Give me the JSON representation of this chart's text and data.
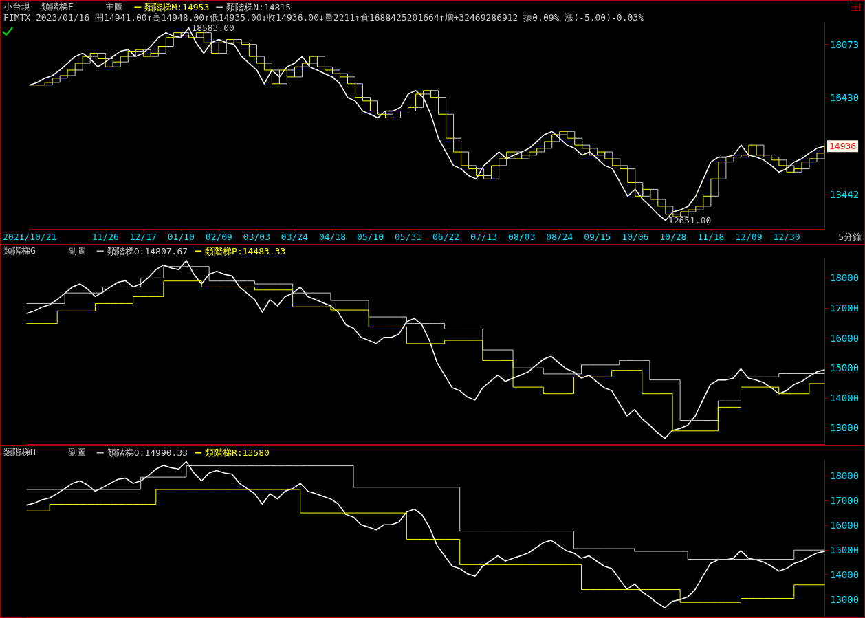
{
  "chart_data": [
    {
      "type": "line",
      "title": "小台現  類階梯F      主圖",
      "subtitle": "FIMTX 2023/01/16 開14941.00↑高14948.00↑低14935.00↓收14936.00↓量2211↑倉1688425201664↑增+32469286912 振0.09% 漲(-5.00)-0.03%",
      "legend": "top left",
      "categories": [
        "2021/10/21",
        null,
        null,
        null,
        null,
        null,
        null,
        null,
        null,
        null,
        "11/26",
        null,
        null,
        null,
        null,
        "12/17",
        null,
        null,
        null,
        null,
        "01/10",
        null,
        null,
        null,
        null,
        "02/09",
        null,
        null,
        null,
        null,
        "03/03",
        null,
        null,
        null,
        null,
        "03/24",
        null,
        null,
        null,
        null,
        "04/18",
        null,
        null,
        null,
        null,
        "05/10",
        null,
        null,
        null,
        null,
        "05/31",
        null,
        null,
        null,
        null,
        "06/22",
        null,
        null,
        null,
        null,
        "07/13",
        null,
        null,
        null,
        null,
        "08/03",
        null,
        null,
        null,
        null,
        "08/24",
        null,
        null,
        null,
        null,
        "09/15",
        null,
        null,
        null,
        null,
        "10/06",
        null,
        null,
        null,
        null,
        "10/28",
        null,
        null,
        null,
        null,
        "11/18",
        null,
        null,
        null,
        null,
        "12/09",
        null,
        null,
        null,
        null,
        "12/30",
        null,
        null,
        null,
        null,
        null
      ],
      "ylim": [
        12390,
        18740
      ],
      "yticks": [
        13442,
        16430,
        18073
      ],
      "annotations": [
        "18583.00",
        "12651.00",
        "14936",
        "5分鐘"
      ],
      "series": [
        {
          "color": "#ffffff",
          "values": [
            16820,
            16900,
            17030,
            17110,
            17280,
            17490,
            17700,
            17800,
            17630,
            17380,
            17530,
            17700,
            17860,
            17910,
            17700,
            17800,
            18010,
            18280,
            18430,
            18330,
            18280,
            18583,
            18120,
            17800,
            18120,
            18220,
            18120,
            18070,
            17700,
            17490,
            17280,
            16860,
            17280,
            17070,
            17380,
            17490,
            17700,
            17380,
            17280,
            17170,
            17070,
            16860,
            16440,
            16330,
            16020,
            15920,
            15810,
            16020,
            16020,
            16130,
            16540,
            16650,
            16440,
            15920,
            15180,
            14760,
            14340,
            14240,
            14030,
            13930,
            14340,
            14550,
            14760,
            14550,
            14660,
            14760,
            14870,
            15080,
            15290,
            15390,
            15180,
            14970,
            14870,
            14660,
            14760,
            14550,
            14340,
            14240,
            13820,
            13400,
            13610,
            13300,
            13090,
            12840,
            12651,
            12920,
            12980,
            13090,
            13400,
            13930,
            14450,
            14600,
            14600,
            14660,
            14970,
            14660,
            14600,
            14510,
            14340,
            14140,
            14240,
            14450,
            14550,
            14720,
            14870,
            14936
          ]
        },
        {
          "type": "step",
          "name": "類階梯M:14953",
          "color": "#ffff00",
          "values": [
            16820,
            16820,
            16900,
            17030,
            17110,
            17280,
            17490,
            17700,
            17800,
            17630,
            17380,
            17530,
            17700,
            17860,
            17910,
            17700,
            17800,
            18010,
            18280,
            18430,
            18330,
            18280,
            18430,
            18120,
            17800,
            18120,
            18220,
            18120,
            18070,
            17700,
            17490,
            17280,
            16860,
            17280,
            17070,
            17380,
            17490,
            17700,
            17380,
            17280,
            17170,
            17070,
            16860,
            16440,
            16330,
            16020,
            15920,
            15810,
            16020,
            16020,
            16130,
            16540,
            16650,
            16440,
            15920,
            15180,
            14760,
            14340,
            14240,
            14030,
            13930,
            14340,
            14550,
            14760,
            14550,
            14660,
            14760,
            14870,
            15080,
            15290,
            15390,
            15180,
            14970,
            14870,
            14660,
            14760,
            14550,
            14340,
            14240,
            13820,
            13400,
            13610,
            13300,
            13090,
            12840,
            12770,
            12920,
            12980,
            13090,
            13400,
            13930,
            14450,
            14600,
            14600,
            14660,
            14970,
            14660,
            14600,
            14510,
            14340,
            14140,
            14240,
            14450,
            14550,
            14720,
            14950
          ]
        },
        {
          "type": "step",
          "name": "類階梯N:14815",
          "color": "#d0d0d0",
          "values": [
            16820,
            16820,
            16820,
            16900,
            17030,
            17110,
            17280,
            17490,
            17700,
            17800,
            17630,
            17380,
            17530,
            17700,
            17860,
            17910,
            17700,
            17800,
            18010,
            18280,
            18430,
            18330,
            18280,
            18430,
            18120,
            17800,
            18120,
            18220,
            18120,
            18070,
            17700,
            17490,
            17280,
            16860,
            17280,
            17070,
            17380,
            17490,
            17700,
            17380,
            17280,
            17170,
            17070,
            16860,
            16440,
            16330,
            16020,
            15920,
            15810,
            16020,
            16020,
            16130,
            16540,
            16650,
            16440,
            15920,
            15180,
            14760,
            14340,
            14240,
            14030,
            13930,
            14340,
            14550,
            14760,
            14550,
            14660,
            14760,
            14870,
            15080,
            15290,
            15390,
            15180,
            14970,
            14870,
            14660,
            14760,
            14550,
            14340,
            14240,
            13820,
            13400,
            13610,
            13300,
            13090,
            12840,
            12770,
            12920,
            12980,
            13090,
            13400,
            13930,
            14450,
            14600,
            14600,
            14660,
            14970,
            14660,
            14600,
            14510,
            14340,
            14140,
            14240,
            14450,
            14550,
            14820
          ]
        }
      ]
    },
    {
      "type": "line",
      "title": "類階梯G      副圖",
      "legend": "top left",
      "tick_labels": "y",
      "categories": [
        null,
        null,
        null,
        null,
        null,
        null,
        null,
        null,
        null,
        null,
        null,
        null,
        null,
        null,
        null,
        null,
        null,
        null,
        null,
        null,
        null,
        null,
        null,
        null,
        null,
        null,
        null,
        null,
        null,
        null,
        null,
        null,
        null,
        null,
        null,
        null,
        null,
        null,
        null,
        null,
        null,
        null,
        null,
        null,
        null,
        null,
        null,
        null,
        null,
        null,
        null,
        null,
        null,
        null,
        null,
        null,
        null,
        null,
        null,
        null,
        null,
        null,
        null,
        null,
        null,
        null,
        null,
        null,
        null,
        null,
        null,
        null,
        null,
        null,
        null,
        null,
        null,
        null,
        null,
        null,
        null,
        null,
        null,
        null,
        null,
        null,
        null,
        null,
        null,
        null,
        null,
        null,
        null,
        null,
        null,
        null,
        null,
        null,
        null,
        null,
        null,
        null,
        null,
        null,
        null,
        null
      ],
      "ylim": [
        12460,
        18650
      ],
      "yticks": [
        13000,
        14000,
        15000,
        16000,
        17000,
        18000
      ],
      "series": [
        {
          "color": "#ffffff",
          "values": [
            16820,
            16900,
            17030,
            17110,
            17280,
            17490,
            17700,
            17800,
            17630,
            17380,
            17530,
            17700,
            17860,
            17910,
            17700,
            17800,
            18010,
            18280,
            18430,
            18330,
            18280,
            18583,
            18120,
            17800,
            18120,
            18220,
            18120,
            18070,
            17700,
            17490,
            17280,
            16860,
            17280,
            17070,
            17380,
            17490,
            17700,
            17380,
            17280,
            17170,
            17070,
            16860,
            16440,
            16330,
            16020,
            15920,
            15810,
            16020,
            16020,
            16130,
            16540,
            16650,
            16440,
            15920,
            15180,
            14760,
            14340,
            14240,
            14030,
            13930,
            14340,
            14550,
            14760,
            14550,
            14660,
            14760,
            14870,
            15080,
            15290,
            15390,
            15180,
            14970,
            14870,
            14660,
            14760,
            14550,
            14340,
            14240,
            13820,
            13400,
            13610,
            13300,
            13090,
            12840,
            12651,
            12920,
            12980,
            13090,
            13400,
            13930,
            14450,
            14600,
            14600,
            14660,
            14970,
            14660,
            14600,
            14510,
            14340,
            14140,
            14240,
            14450,
            14550,
            14720,
            14870,
            14936
          ]
        },
        {
          "type": "step",
          "name": "類階梯O:14807.67",
          "color": "#d0d0d0",
          "values": [
            17150,
            17150,
            17150,
            17150,
            17150,
            17500,
            17500,
            17500,
            17500,
            17500,
            17700,
            17700,
            17700,
            17700,
            17700,
            18000,
            18000,
            18000,
            18380,
            18380,
            18380,
            18380,
            18380,
            18380,
            17900,
            17900,
            17900,
            17900,
            17900,
            17900,
            17800,
            17800,
            17800,
            17800,
            17800,
            17500,
            17500,
            17500,
            17500,
            17500,
            17250,
            17250,
            17250,
            17250,
            17250,
            16700,
            16700,
            16700,
            16700,
            16700,
            16480,
            16480,
            16480,
            16480,
            16480,
            16300,
            16300,
            16300,
            16300,
            16300,
            15600,
            15600,
            15600,
            15600,
            15000,
            15000,
            15000,
            15000,
            14800,
            14800,
            14800,
            14800,
            14800,
            15100,
            15100,
            15100,
            15100,
            15100,
            15250,
            15250,
            15250,
            15250,
            14600,
            14600,
            14600,
            14600,
            13250,
            13250,
            13250,
            13250,
            13250,
            13900,
            13900,
            13900,
            14700,
            14700,
            14700,
            14700,
            14700,
            14810,
            14810,
            14810,
            14810,
            14810,
            14810,
            14810
          ]
        },
        {
          "type": "step",
          "name": "類階梯P:14483.33",
          "color": "#ffff00",
          "values": [
            16480,
            16480,
            16480,
            16480,
            16900,
            16900,
            16900,
            16900,
            16900,
            17150,
            17150,
            17150,
            17150,
            17150,
            17380,
            17380,
            17380,
            17380,
            17900,
            17900,
            17900,
            17900,
            17900,
            17700,
            17700,
            17700,
            17700,
            17700,
            17700,
            17700,
            17600,
            17600,
            17600,
            17600,
            17600,
            17040,
            17040,
            17040,
            17040,
            17040,
            16930,
            16930,
            16930,
            16930,
            16930,
            16370,
            16370,
            16370,
            16370,
            16370,
            15810,
            15810,
            15810,
            15810,
            15810,
            15920,
            15920,
            15920,
            15920,
            15920,
            15250,
            15250,
            15250,
            15250,
            14360,
            14360,
            14360,
            14360,
            14140,
            14140,
            14140,
            14140,
            14700,
            14700,
            14700,
            14700,
            14700,
            14920,
            14920,
            14920,
            14920,
            14140,
            14140,
            14140,
            14140,
            12900,
            12900,
            12900,
            12900,
            12900,
            12900,
            13690,
            13690,
            13690,
            14360,
            14360,
            14360,
            14360,
            14360,
            14140,
            14140,
            14140,
            14140,
            14480,
            14480,
            14480
          ]
        }
      ]
    },
    {
      "type": "line",
      "title": "類階梯H      副圖",
      "legend": "top left",
      "tick_labels": "y",
      "categories": [
        null,
        null,
        null,
        null,
        null,
        null,
        null,
        null,
        null,
        null,
        null,
        null,
        null,
        null,
        null,
        null,
        null,
        null,
        null,
        null,
        null,
        null,
        null,
        null,
        null,
        null,
        null,
        null,
        null,
        null,
        null,
        null,
        null,
        null,
        null,
        null,
        null,
        null,
        null,
        null,
        null,
        null,
        null,
        null,
        null,
        null,
        null,
        null,
        null,
        null,
        null,
        null,
        null,
        null,
        null,
        null,
        null,
        null,
        null,
        null,
        null,
        null,
        null,
        null,
        null,
        null,
        null,
        null,
        null,
        null,
        null,
        null,
        null,
        null,
        null,
        null,
        null,
        null,
        null,
        null,
        null,
        null,
        null,
        null,
        null,
        null,
        null,
        null,
        null,
        null,
        null,
        null,
        null,
        null,
        null,
        null,
        null,
        null,
        null,
        null,
        null,
        null,
        null,
        null,
        null,
        null
      ],
      "ylim": [
        12290,
        18650
      ],
      "yticks": [
        13000,
        14000,
        15000,
        16000,
        17000,
        18000
      ],
      "series": [
        {
          "color": "#ffffff",
          "values": [
            16820,
            16900,
            17030,
            17110,
            17280,
            17490,
            17700,
            17800,
            17630,
            17380,
            17530,
            17700,
            17860,
            17910,
            17700,
            17800,
            18010,
            18280,
            18430,
            18330,
            18280,
            18583,
            18120,
            17800,
            18120,
            18220,
            18120,
            18070,
            17700,
            17490,
            17280,
            16860,
            17280,
            17070,
            17380,
            17490,
            17700,
            17380,
            17280,
            17170,
            17070,
            16860,
            16440,
            16330,
            16020,
            15920,
            15810,
            16020,
            16020,
            16130,
            16540,
            16650,
            16440,
            15920,
            15180,
            14760,
            14340,
            14240,
            14030,
            13930,
            14340,
            14550,
            14760,
            14550,
            14660,
            14760,
            14870,
            15080,
            15290,
            15390,
            15180,
            14970,
            14870,
            14660,
            14760,
            14550,
            14340,
            14240,
            13820,
            13400,
            13610,
            13300,
            13090,
            12840,
            12651,
            12920,
            12980,
            13090,
            13400,
            13930,
            14450,
            14600,
            14600,
            14660,
            14970,
            14660,
            14600,
            14510,
            14340,
            14140,
            14240,
            14450,
            14550,
            14720,
            14870,
            14936
          ]
        },
        {
          "type": "step",
          "name": "類階梯Q:14990.33",
          "color": "#d0d0d0",
          "values": [
            17450,
            17450,
            17450,
            17450,
            17450,
            17450,
            17450,
            17450,
            17450,
            17450,
            17450,
            17450,
            17450,
            17450,
            17450,
            17950,
            17950,
            17950,
            17950,
            17950,
            17950,
            18410,
            18410,
            18410,
            18410,
            18410,
            18410,
            18410,
            18410,
            18410,
            18410,
            18410,
            18410,
            18410,
            18410,
            18410,
            18410,
            18410,
            18410,
            18410,
            18410,
            18410,
            18410,
            17540,
            17540,
            17540,
            17540,
            17540,
            17540,
            17540,
            17540,
            17540,
            17540,
            17540,
            17540,
            17540,
            17540,
            15760,
            15760,
            15760,
            15760,
            15760,
            15760,
            15760,
            15760,
            15760,
            15760,
            15760,
            15760,
            15760,
            15760,
            15760,
            15050,
            15050,
            15050,
            15050,
            15050,
            15050,
            15050,
            15050,
            14940,
            14940,
            14940,
            14940,
            14940,
            14940,
            14940,
            14620,
            14620,
            14620,
            14620,
            14620,
            14620,
            14620,
            14620,
            14620,
            14620,
            14620,
            14620,
            14620,
            14620,
            14990,
            14990,
            14990,
            14990,
            14990
          ]
        },
        {
          "type": "step",
          "name": "類階梯R:13580",
          "color": "#ffff00",
          "values": [
            16580,
            16580,
            16580,
            16850,
            16850,
            16850,
            16850,
            16850,
            16850,
            16850,
            16850,
            16850,
            16850,
            16850,
            16850,
            16850,
            16850,
            17450,
            17450,
            17450,
            17450,
            17450,
            17450,
            17450,
            17450,
            17450,
            17450,
            17450,
            17450,
            17450,
            17450,
            17450,
            17450,
            17450,
            17450,
            17450,
            16500,
            16500,
            16500,
            16500,
            16500,
            16500,
            16500,
            16500,
            16500,
            16500,
            16500,
            16500,
            16500,
            16500,
            15430,
            15430,
            15430,
            15430,
            15430,
            15430,
            15430,
            14400,
            14400,
            14400,
            14400,
            14400,
            14400,
            14400,
            14400,
            14400,
            14400,
            14400,
            14400,
            14400,
            14400,
            14400,
            14400,
            13390,
            13390,
            13390,
            13390,
            13390,
            13390,
            13390,
            13390,
            13390,
            13390,
            13390,
            13390,
            13390,
            12870,
            12870,
            12870,
            12870,
            12870,
            12870,
            12870,
            12870,
            13030,
            13030,
            13030,
            13030,
            13030,
            13030,
            13030,
            13580,
            13580,
            13580,
            13580,
            13580
          ]
        }
      ]
    }
  ]
}
